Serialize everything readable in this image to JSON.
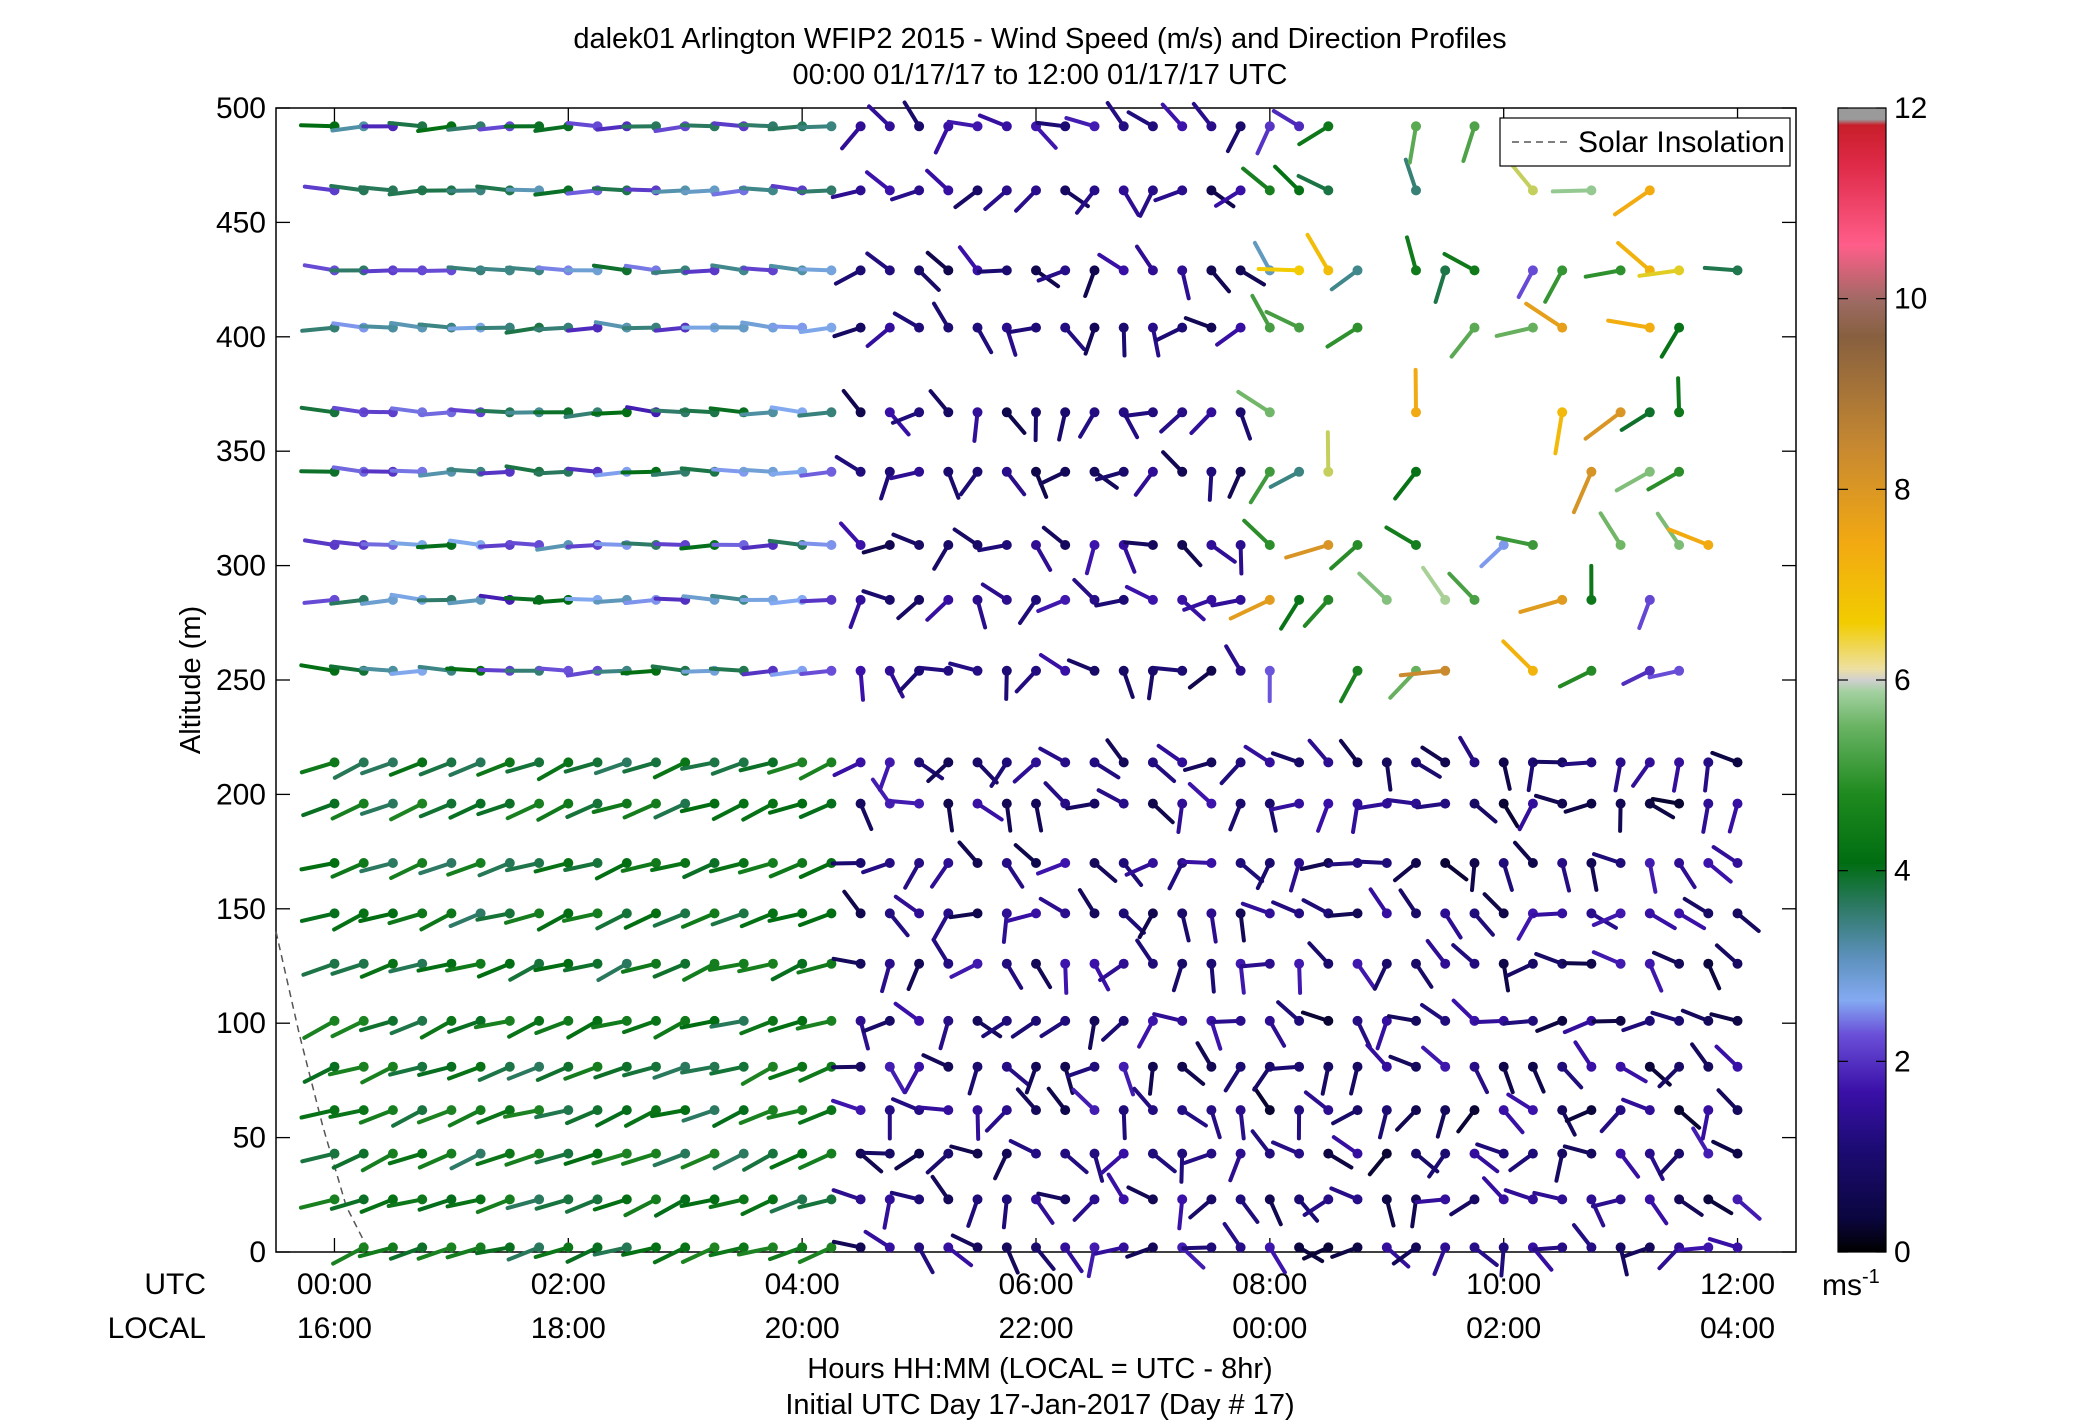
{
  "chart_data": {
    "type": "wind-barb-profile",
    "title": "dalek01 Arlington WFIP2 2015 - Wind Speed (m/s) and Direction Profiles",
    "subtitle": "00:00 01/17/17 to 12:00 01/17/17  UTC",
    "ylabel": "Altitude (m)",
    "xlabel": "Hours HH:MM  (LOCAL = UTC - 8hr)",
    "xlabel2": "Initial UTC Day 17-Jan-2017 (Day # 17)",
    "ylim": [
      0,
      500
    ],
    "xlim_hours_utc": [
      -0.5,
      12.5
    ],
    "y_ticks": [
      "0",
      "50",
      "100",
      "150",
      "200",
      "250",
      "300",
      "350",
      "400",
      "450",
      "500"
    ],
    "x_ticks_utc": [
      "00:00",
      "02:00",
      "04:00",
      "06:00",
      "08:00",
      "10:00",
      "12:00"
    ],
    "x_ticks_local": [
      "16:00",
      "18:00",
      "20:00",
      "22:00",
      "00:00",
      "02:00",
      "04:00"
    ],
    "row_labels": {
      "utc": "UTC",
      "local": "LOCAL"
    },
    "legend": {
      "entries": [
        "Solar Insolation"
      ],
      "placement": "top-right"
    },
    "colorbar": {
      "range": [
        0,
        12
      ],
      "ticks": [
        "0",
        "2",
        "4",
        "6",
        "8",
        "10",
        "12"
      ],
      "unit_label": "ms",
      "unit_exponent": "-1"
    },
    "altitudes_m": [
      2,
      23,
      43,
      62,
      81,
      101,
      126,
      148,
      170,
      196,
      214,
      254,
      285,
      309,
      341,
      367,
      404,
      429,
      464,
      492
    ],
    "solar_insolation": {
      "x_hours": [
        -0.5,
        -0.3,
        -0.1,
        0.1,
        0.3
      ],
      "y_m": [
        140,
        95,
        55,
        20,
        0
      ]
    },
    "wind_profiles": [
      {
        "period": "00:00-04:30",
        "altitude_band": "0-220 m",
        "speed_ms": [
          3.0,
          4.0
        ],
        "direction_deg": [
          240,
          260
        ]
      },
      {
        "period": "00:00-04:30",
        "altitude_band": "250-500 m",
        "speed_ms": [
          1.5,
          3.5
        ],
        "direction_deg": [
          260,
          280
        ]
      },
      {
        "period": "04:30-08:00",
        "altitude_band": "0-500 m",
        "speed_ms": [
          0.5,
          1.5
        ],
        "direction_deg": [
          120,
          330
        ]
      },
      {
        "period": "08:00-12:00",
        "altitude_band": "0-220 m",
        "speed_ms": [
          0.3,
          1.5
        ],
        "direction_deg": [
          120,
          330
        ]
      },
      {
        "period": "08:00-12:00",
        "altitude_band": "250-500 m",
        "speed_ms": [
          1.5,
          8.5
        ],
        "direction_deg": [
          180,
          360
        ]
      }
    ]
  }
}
